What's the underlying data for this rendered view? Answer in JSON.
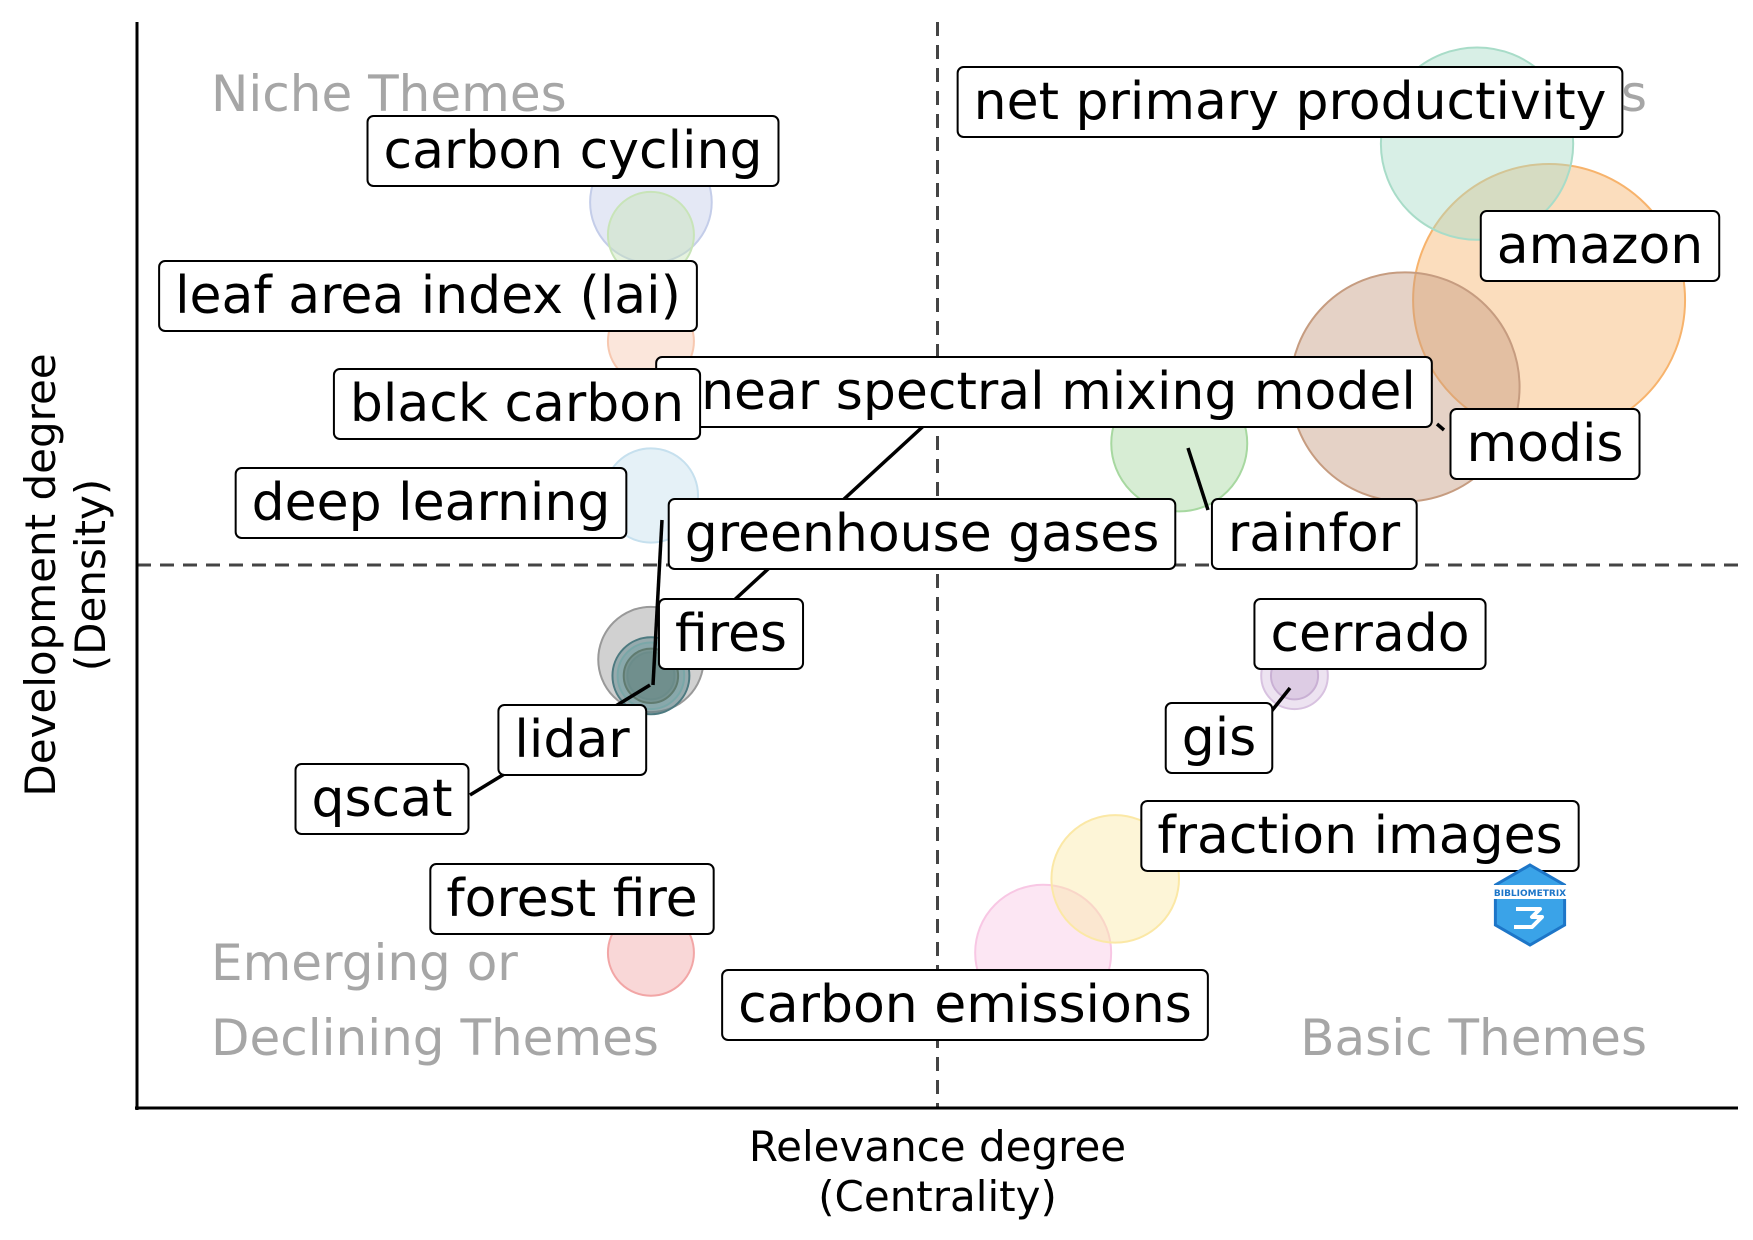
{
  "chart_data": {
    "type": "scatter",
    "title": "",
    "xlabel": [
      "Relevance degree",
      "(Centrality)"
    ],
    "ylabel": [
      "Development degree",
      "(Density)"
    ],
    "xlim": [
      0,
      100
    ],
    "ylim": [
      0,
      100
    ],
    "grid": false,
    "reference_lines": {
      "x": 50,
      "y": 50
    },
    "quadrants": {
      "niche": "Niche Themes",
      "motor": "Motor Themes",
      "emerging_line1": "Emerging or",
      "emerging_line2": "Declining Themes",
      "basic": "Basic Themes"
    },
    "points": [
      {
        "label": "net primary productivity",
        "x": 83.7,
        "y": 88.8,
        "size": 5.0,
        "color": "#a8dcc8"
      },
      {
        "label": "amazon",
        "x": 88.2,
        "y": 74.4,
        "size": 10.0,
        "color": "#f7b36c"
      },
      {
        "label": "modis",
        "x": 79.2,
        "y": 66.4,
        "size": 7.1,
        "color": "#c69c80"
      },
      {
        "label": "rainfor",
        "x": 65.1,
        "y": 61.2,
        "size": 2.5,
        "color": "#a7d8a0"
      },
      {
        "label": "linear spectral mixing model",
        "x": 32.1,
        "y": 41.3,
        "size": 1.5,
        "color": "#999999"
      },
      {
        "label": "carbon cycling",
        "x": 32.1,
        "y": 83.4,
        "size": 2.0,
        "color": "#c4cde9"
      },
      {
        "label": "leaf area index (lai)",
        "x": 32.1,
        "y": 80.4,
        "size": 1.0,
        "color": "#c8e4b8"
      },
      {
        "label": "black carbon",
        "x": 32.1,
        "y": 70.6,
        "size": 1.0,
        "color": "#f7c8b0"
      },
      {
        "label": "deep learning",
        "x": 32.1,
        "y": 56.4,
        "size": 1.2,
        "color": "#c6e0ee"
      },
      {
        "label": "greenhouse gases",
        "x": 32.1,
        "y": 39.8,
        "size": 0.8,
        "color": "#4d7a80"
      },
      {
        "label": "fires",
        "x": 32.1,
        "y": 39.8,
        "size": 0.6,
        "color": "#7aa7a8"
      },
      {
        "label": "lidar",
        "x": 32.1,
        "y": 39.8,
        "size": 0.4,
        "color": "#607b70"
      },
      {
        "label": "qscat",
        "x": 32.1,
        "y": 39.8,
        "size": 0.3,
        "color": "#6b8c8a"
      },
      {
        "label": "forest fire",
        "x": 32.1,
        "y": 14.3,
        "size": 1.0,
        "color": "#f2a6a6"
      },
      {
        "label": "cerrado",
        "x": 72.3,
        "y": 39.8,
        "size": 0.6,
        "color": "#d8c2e0"
      },
      {
        "label": "gis",
        "x": 72.3,
        "y": 39.8,
        "size": 0.3,
        "color": "#c9b0d4"
      },
      {
        "label": "fraction images",
        "x": 61.1,
        "y": 21.1,
        "size": 2.2,
        "color": "#fbe8a6"
      },
      {
        "label": "carbon emissions",
        "x": 56.6,
        "y": 14.3,
        "size": 2.5,
        "color": "#f8c7e4"
      }
    ]
  },
  "logo": {
    "text": "BIBLIOMETRIX",
    "name": "bibliometrix-logo"
  }
}
